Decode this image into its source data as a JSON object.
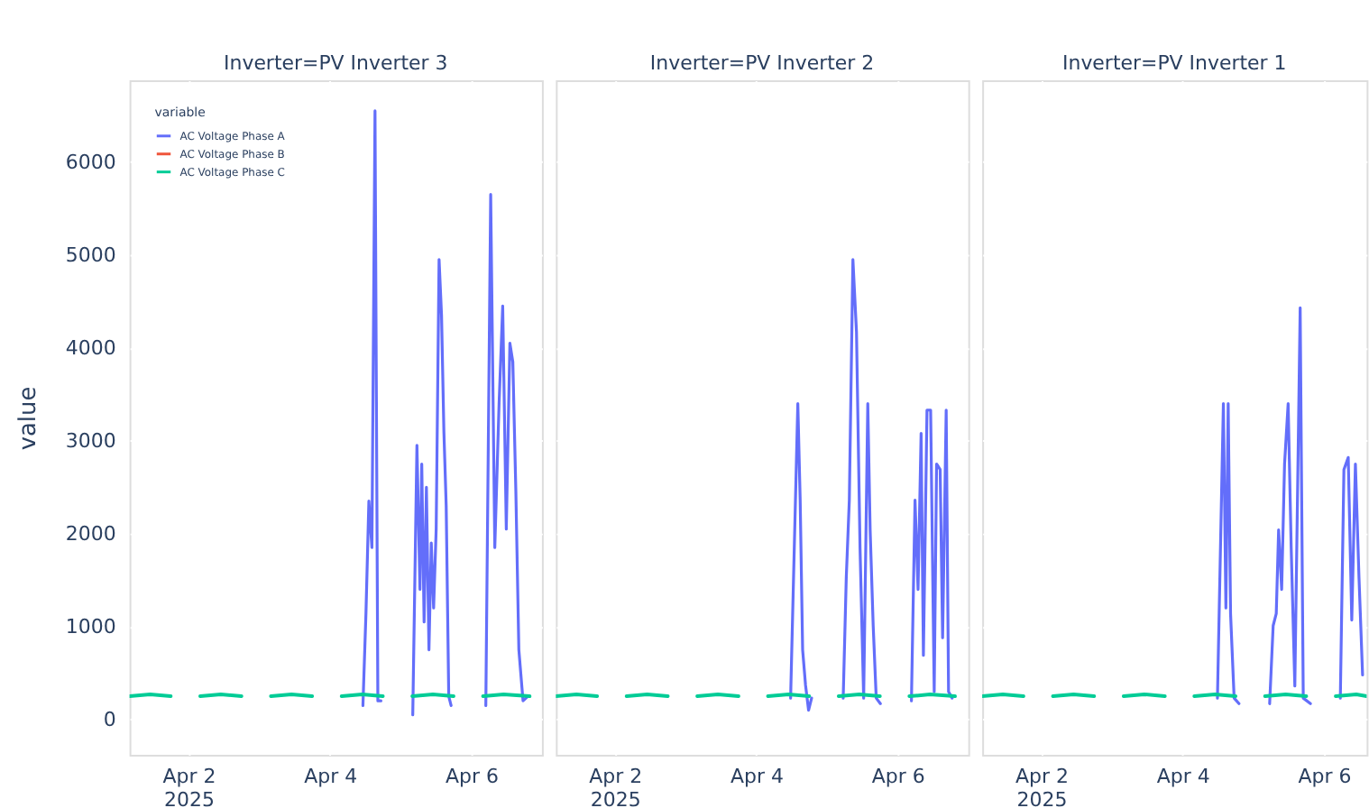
{
  "chart_data": [
    {
      "type": "line",
      "title": "Inverter=PV Inverter 3",
      "ylabel": "value",
      "xlim": [
        "2025-04-01T04:00",
        "2025-04-07T00:00"
      ],
      "xticks": [
        {
          "value": "2025-04-02",
          "label": "Apr 2\n2025"
        },
        {
          "value": "2025-04-04",
          "label": "Apr 4"
        },
        {
          "value": "2025-04-06",
          "label": "Apr 6"
        }
      ],
      "ylim": [
        -380,
        6880
      ],
      "yticks": [
        0,
        1000,
        2000,
        3000,
        4000,
        5000,
        6000
      ],
      "grid": true,
      "legend": "top left",
      "legend_title": "variable",
      "marker": "none",
      "line_style": "solid",
      "series": [
        {
          "name": "AC Voltage Phase A",
          "color": "#636efa",
          "x": [
            "2025-04-04T11:14",
            "2025-04-04T12:16",
            "2025-04-04T13:15",
            "2025-04-04T14:17",
            "2025-04-04T15:20",
            "2025-04-04T16:18",
            "2025-04-04T17:21",
            "2025-04-04T23:00",
            "2025-04-05T04:09",
            "2025-04-05T05:34",
            "2025-04-05T06:36",
            "2025-04-05T07:12",
            "2025-04-05T08:00",
            "2025-04-05T08:47",
            "2025-04-05T09:39",
            "2025-04-05T10:26",
            "2025-04-05T11:14",
            "2025-04-05T12:06",
            "2025-04-05T13:05",
            "2025-04-05T13:55",
            "2025-04-05T14:43",
            "2025-04-05T15:30",
            "2025-04-05T16:22",
            "2025-04-05T17:10",
            "2025-04-05T23:00",
            "2025-04-06T04:57",
            "2025-04-06T06:36",
            "2025-04-06T08:00",
            "2025-04-06T09:27",
            "2025-04-06T10:41",
            "2025-04-06T11:54",
            "2025-04-06T13:07",
            "2025-04-06T14:07",
            "2025-04-06T15:09",
            "2025-04-06T16:10",
            "2025-04-06T17:35",
            "2025-04-06T19:14"
          ],
          "values": [
            150,
            1150,
            2350,
            1850,
            6550,
            200,
            200,
            null,
            50,
            2950,
            1400,
            2750,
            1050,
            2500,
            750,
            1900,
            1200,
            2050,
            4950,
            4350,
            3100,
            2300,
            250,
            150,
            null,
            150,
            5650,
            1850,
            3400,
            4450,
            2050,
            4050,
            3850,
            2450,
            750,
            200,
            250
          ]
        },
        {
          "name": "AC Voltage Phase B",
          "color": "#ef553b"
        },
        {
          "name": "AC Voltage Phase C",
          "color": "#00cc96",
          "x": [
            "2025-04-01T04:00",
            "2025-04-01T11:00",
            "2025-04-01T18:00",
            "2025-04-01T21:00",
            "2025-04-02T04:00",
            "2025-04-02T11:00",
            "2025-04-02T18:00",
            "2025-04-02T21:00",
            "2025-04-03T04:00",
            "2025-04-03T11:00",
            "2025-04-03T18:00",
            "2025-04-03T21:00",
            "2025-04-04T04:00",
            "2025-04-04T11:00",
            "2025-04-04T18:00",
            "2025-04-04T21:00",
            "2025-04-05T04:00",
            "2025-04-05T11:00",
            "2025-04-05T18:00",
            "2025-04-05T21:00",
            "2025-04-06T04:00",
            "2025-04-06T11:00",
            "2025-04-06T19:50"
          ],
          "values": [
            250,
            270,
            250,
            null,
            250,
            270,
            250,
            null,
            250,
            270,
            250,
            null,
            250,
            270,
            250,
            null,
            250,
            270,
            250,
            null,
            250,
            270,
            250
          ]
        }
      ]
    },
    {
      "type": "line",
      "title": "Inverter=PV Inverter 2",
      "xlim": [
        "2025-04-01T04:00",
        "2025-04-07T00:00"
      ],
      "xticks": [
        {
          "value": "2025-04-02",
          "label": "Apr 2\n2025"
        },
        {
          "value": "2025-04-04",
          "label": "Apr 4"
        },
        {
          "value": "2025-04-06",
          "label": "Apr 6"
        }
      ],
      "ylim": [
        -380,
        6880
      ],
      "tick_labels": "x",
      "grid": true,
      "marker": "none",
      "line_style": "solid",
      "series": [
        {
          "color": "#636efa",
          "x": [
            "2025-04-04T11:41",
            "2025-04-04T14:08",
            "2025-04-04T14:56",
            "2025-04-04T15:46",
            "2025-04-04T16:45",
            "2025-04-04T17:47",
            "2025-04-04T18:49",
            "2025-04-04T23:00",
            "2025-04-05T05:32",
            "2025-04-05T06:35",
            "2025-04-05T07:37",
            "2025-04-05T08:50",
            "2025-04-05T10:03",
            "2025-04-05T11:15",
            "2025-04-05T12:29",
            "2025-04-05T13:53",
            "2025-04-05T14:41",
            "2025-04-05T15:43",
            "2025-04-05T16:45",
            "2025-04-05T18:09",
            "2025-04-05T23:00",
            "2025-04-06T04:42",
            "2025-04-06T05:55",
            "2025-04-06T06:57",
            "2025-04-06T07:59",
            "2025-04-06T08:46",
            "2025-04-06T09:59",
            "2025-04-06T11:13",
            "2025-04-06T12:26",
            "2025-04-06T13:14",
            "2025-04-06T14:27",
            "2025-04-06T15:17",
            "2025-04-06T16:30",
            "2025-04-06T17:18",
            "2025-04-06T18:31"
          ],
          "values": [
            230,
            3400,
            2360,
            750,
            370,
            100,
            230,
            null,
            230,
            1530,
            2360,
            4950,
            4170,
            1850,
            230,
            3400,
            2040,
            1010,
            230,
            170,
            null,
            200,
            2360,
            1400,
            3080,
            690,
            3330,
            3330,
            300,
            2750,
            2690,
            880,
            3330,
            300,
            230
          ]
        },
        {
          "color": "#00cc96",
          "x": [
            "2025-04-01T04:00",
            "2025-04-01T11:00",
            "2025-04-01T18:00",
            "2025-04-01T21:00",
            "2025-04-02T04:00",
            "2025-04-02T11:00",
            "2025-04-02T18:00",
            "2025-04-02T21:00",
            "2025-04-03T04:00",
            "2025-04-03T11:00",
            "2025-04-03T18:00",
            "2025-04-03T21:00",
            "2025-04-04T04:00",
            "2025-04-04T11:00",
            "2025-04-04T18:00",
            "2025-04-04T21:00",
            "2025-04-05T04:00",
            "2025-04-05T11:00",
            "2025-04-05T18:00",
            "2025-04-05T21:00",
            "2025-04-06T04:00",
            "2025-04-06T11:00",
            "2025-04-06T19:30"
          ],
          "values": [
            250,
            270,
            250,
            null,
            250,
            270,
            250,
            null,
            250,
            270,
            250,
            null,
            250,
            270,
            250,
            null,
            250,
            270,
            250,
            null,
            250,
            270,
            250
          ]
        }
      ]
    },
    {
      "type": "line",
      "title": "Inverter=PV Inverter 1",
      "xlim": [
        "2025-04-01T04:00",
        "2025-04-06T14:30"
      ],
      "xticks": [
        {
          "value": "2025-04-02",
          "label": "Apr 2\n2025"
        },
        {
          "value": "2025-04-04",
          "label": "Apr 4"
        },
        {
          "value": "2025-04-06",
          "label": "Apr 6"
        }
      ],
      "ylim": [
        -380,
        6880
      ],
      "tick_labels": "x",
      "grid": true,
      "marker": "none",
      "line_style": "solid",
      "series": [
        {
          "color": "#636efa",
          "x": [
            "2025-04-04T11:51",
            "2025-04-04T13:52",
            "2025-04-04T14:43",
            "2025-04-04T15:30",
            "2025-04-04T16:18",
            "2025-04-04T17:31",
            "2025-04-04T19:10",
            "2025-04-04T23:00",
            "2025-04-05T05:34",
            "2025-04-05T06:46",
            "2025-04-05T07:49",
            "2025-04-05T08:37",
            "2025-04-05T09:39",
            "2025-04-05T10:38",
            "2025-04-05T11:51",
            "2025-04-05T12:53",
            "2025-04-05T14:07",
            "2025-04-05T15:56",
            "2025-04-05T16:59",
            "2025-04-05T19:25",
            "2025-04-05T23:00",
            "2025-04-06T05:34",
            "2025-04-06T06:47",
            "2025-04-06T08:15",
            "2025-04-06T09:27",
            "2025-04-06T10:41",
            "2025-04-06T11:54",
            "2025-04-06T13:07"
          ],
          "values": [
            230,
            3400,
            1200,
            3400,
            1140,
            230,
            170,
            null,
            170,
            1010,
            1140,
            2040,
            1400,
            2750,
            3400,
            1850,
            360,
            4430,
            230,
            170,
            null,
            230,
            2690,
            2820,
            1070,
            2750,
            1530,
            480
          ]
        },
        {
          "color": "#00cc96",
          "x": [
            "2025-04-01T04:00",
            "2025-04-01T11:00",
            "2025-04-01T18:00",
            "2025-04-01T21:00",
            "2025-04-02T04:00",
            "2025-04-02T11:00",
            "2025-04-02T18:00",
            "2025-04-02T21:00",
            "2025-04-03T04:00",
            "2025-04-03T11:00",
            "2025-04-03T18:00",
            "2025-04-03T21:00",
            "2025-04-04T04:00",
            "2025-04-04T11:00",
            "2025-04-04T18:00",
            "2025-04-04T21:00",
            "2025-04-05T04:00",
            "2025-04-05T11:00",
            "2025-04-05T18:00",
            "2025-04-05T21:00",
            "2025-04-06T04:00",
            "2025-04-06T11:00",
            "2025-04-06T14:30"
          ],
          "values": [
            250,
            270,
            250,
            null,
            250,
            270,
            250,
            null,
            250,
            270,
            250,
            null,
            250,
            270,
            250,
            null,
            250,
            270,
            250,
            null,
            250,
            270,
            250
          ]
        }
      ]
    }
  ]
}
